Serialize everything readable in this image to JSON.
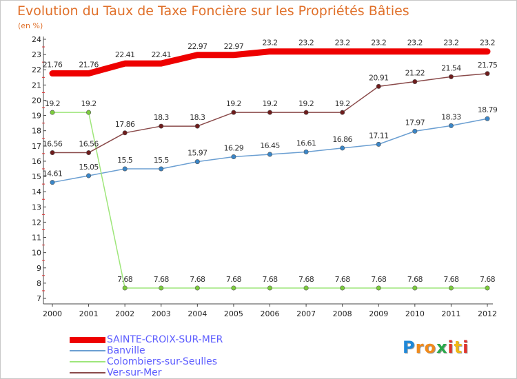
{
  "title": "Evolution du Taux de Taxe Foncière sur les Propriétés Bâties",
  "subtitle": "(en %)",
  "logo": {
    "text": "Proxiti",
    "letters": [
      "P",
      "r",
      "o",
      "x",
      "i",
      "t",
      "i"
    ],
    "colors": [
      "#1e88d8",
      "#f08a1c",
      "#f08a1c",
      "#2aa84a",
      "#e0322b",
      "#f0b814",
      "#e0322b"
    ]
  },
  "chart_data": {
    "type": "line",
    "x": [
      "2000",
      "2001",
      "2002",
      "2003",
      "2004",
      "2005",
      "2006",
      "2007",
      "2008",
      "2009",
      "2010",
      "2011",
      "2012"
    ],
    "ylim": [
      7,
      24
    ],
    "yticks": [
      7,
      8,
      9,
      10,
      11,
      12,
      13,
      14,
      15,
      16,
      17,
      18,
      19,
      20,
      21,
      22,
      23,
      24
    ],
    "grid": false,
    "legend_position": "bottom-left",
    "series": [
      {
        "name": "SAINTE-CROIX-SUR-MER",
        "color": "#ee0000",
        "emphasis": true,
        "values": [
          21.76,
          21.76,
          22.41,
          22.41,
          22.97,
          22.97,
          23.2,
          23.2,
          23.2,
          23.2,
          23.2,
          23.2,
          23.2
        ],
        "labels": [
          "21.76",
          "21.76",
          "22.41",
          "22.41",
          "22.97",
          "22.97",
          "23.2",
          "23.2",
          "23.2",
          "23.2",
          "23.2",
          "23.2",
          "23.2"
        ]
      },
      {
        "name": "Banville",
        "color": "#6b9fd2",
        "marker": "#3a86c8",
        "values": [
          14.61,
          15.05,
          15.5,
          15.5,
          15.97,
          16.29,
          16.45,
          16.61,
          16.86,
          17.11,
          17.97,
          18.33,
          18.79
        ],
        "labels": [
          "14.61",
          "15.05",
          "15.5",
          "15.5",
          "15.97",
          "16.29",
          "16.45",
          "16.61",
          "16.86",
          "17.11",
          "17.97",
          "18.33",
          "18.79"
        ]
      },
      {
        "name": "Colombiers-sur-Seulles",
        "color": "#9ee67a",
        "marker": "#7ccc3c",
        "values": [
          19.2,
          19.2,
          7.68,
          7.68,
          7.68,
          7.68,
          7.68,
          7.68,
          7.68,
          7.68,
          7.68,
          7.68,
          7.68
        ],
        "labels": [
          "19.2",
          "19.2",
          "7.68",
          "7.68",
          "7.68",
          "7.68",
          "7.68",
          "7.68",
          "7.68",
          "7.68",
          "7.68",
          "7.68",
          "7.68"
        ]
      },
      {
        "name": "Ver-sur-Mer",
        "color": "#8a4a4a",
        "marker": "#6e1c1c",
        "values": [
          16.56,
          16.56,
          17.86,
          18.3,
          18.3,
          19.2,
          19.2,
          19.2,
          19.2,
          20.91,
          21.22,
          21.54,
          21.75
        ],
        "labels": [
          "16.56",
          "16.56",
          "17.86",
          "18.3",
          "18.3",
          "19.2",
          "19.2",
          "19.2",
          "19.2",
          "20.91",
          "21.22",
          "21.54",
          "21.75"
        ]
      }
    ]
  }
}
